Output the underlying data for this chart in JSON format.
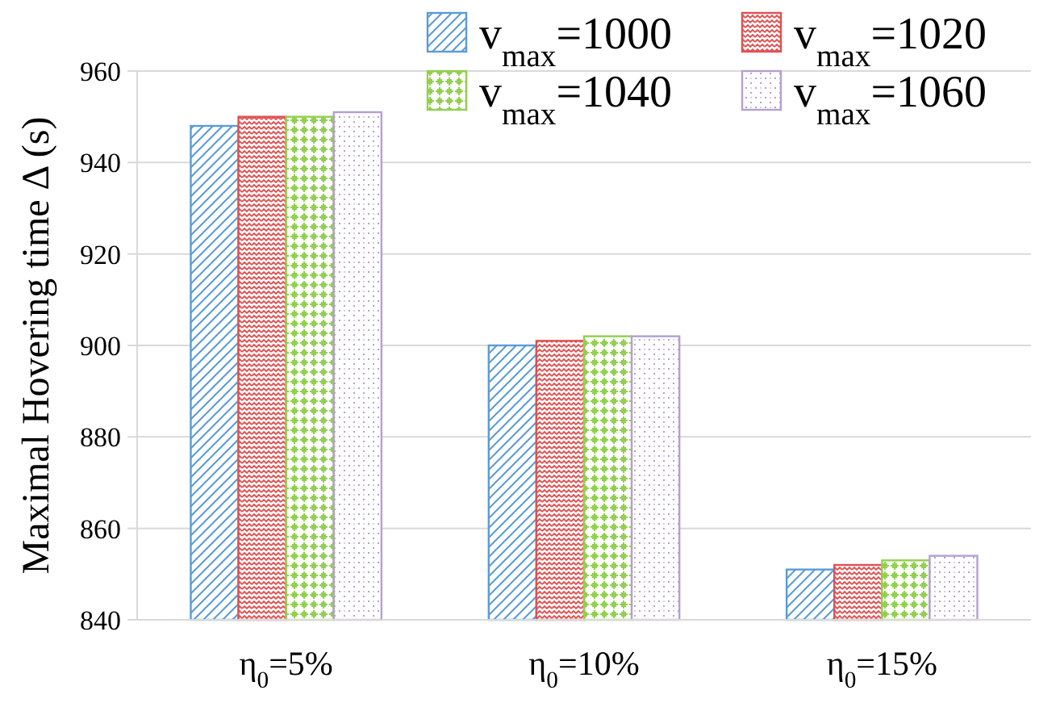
{
  "chart_data": {
    "type": "bar",
    "ylabel": "Maximal Hovering time Δ (s)",
    "categories": [
      "η$_{0}$=5%",
      "η$_{0}$=10%",
      "η$_{0}$=15%"
    ],
    "series": [
      {
        "name": "v$_{max}$=1000",
        "color": "#5b9bd5",
        "values": [
          948,
          900,
          851
        ]
      },
      {
        "name": "v$_{max}$=1020",
        "color": "#e05050",
        "values": [
          950,
          901,
          852
        ]
      },
      {
        "name": "v$_{max}$=1040",
        "color": "#92d050",
        "values": [
          950,
          902,
          853
        ]
      },
      {
        "name": "v$_{max}$=1060",
        "color": "#b4a0d0",
        "values": [
          951,
          902,
          854
        ]
      }
    ],
    "ylim": [
      840,
      960
    ],
    "yticks": [
      840,
      860,
      880,
      900,
      920,
      940,
      960
    ],
    "grid": "y",
    "legend": "top right"
  }
}
